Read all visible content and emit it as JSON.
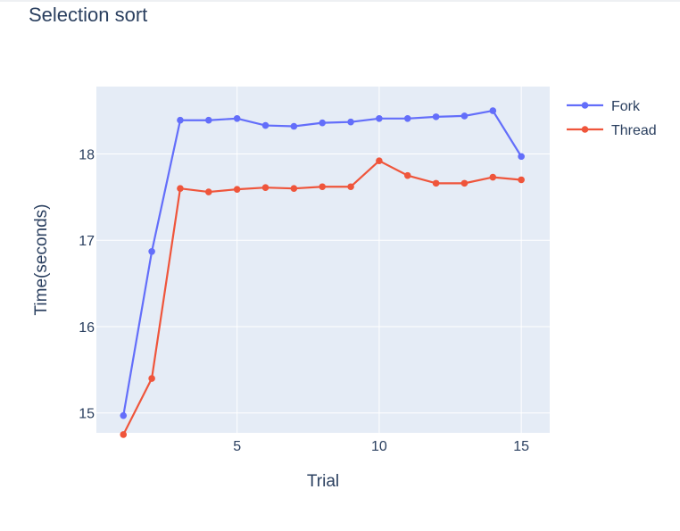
{
  "chart_data": {
    "type": "line",
    "title": "Selection sort",
    "xlabel": "Trial",
    "ylabel": "Time(seconds)",
    "xlim": [
      0.05,
      16.0
    ],
    "ylim": [
      14.77,
      18.78
    ],
    "xticks": [
      5,
      10,
      15
    ],
    "yticks": [
      15,
      16,
      17,
      18
    ],
    "grid": true,
    "legend_position": "top-right",
    "x": [
      1,
      2,
      3,
      4,
      5,
      6,
      7,
      8,
      9,
      10,
      11,
      12,
      13,
      14,
      15
    ],
    "series": [
      {
        "name": "Fork",
        "color": "#636efa",
        "values": [
          14.97,
          16.87,
          18.39,
          18.39,
          18.41,
          18.33,
          18.32,
          18.36,
          18.37,
          18.41,
          18.41,
          18.43,
          18.44,
          18.5,
          17.97
        ]
      },
      {
        "name": "Thread",
        "color": "#ef553b",
        "values": [
          14.75,
          15.4,
          17.6,
          17.56,
          17.59,
          17.61,
          17.6,
          17.62,
          17.62,
          17.92,
          17.75,
          17.66,
          17.66,
          17.73,
          17.7
        ]
      }
    ]
  }
}
